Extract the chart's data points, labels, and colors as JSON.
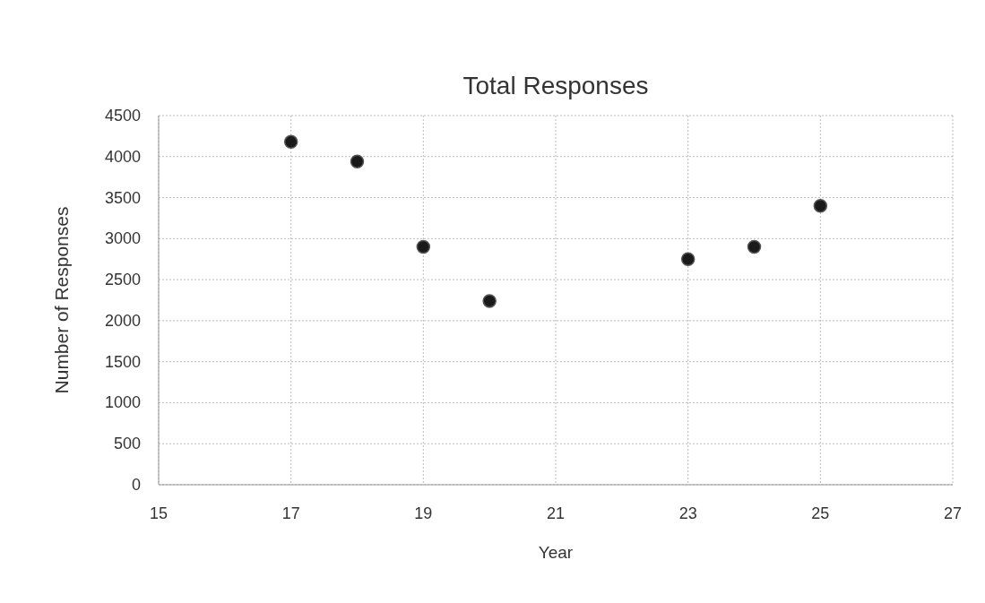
{
  "chart_data": {
    "type": "scatter",
    "title": "Total Responses",
    "xlabel": "Year",
    "ylabel": "Number of Responses",
    "x": [
      17,
      18,
      19,
      20,
      23,
      24,
      25
    ],
    "values": [
      4180,
      3940,
      2900,
      2240,
      2750,
      2900,
      3400
    ],
    "color": "#1a1a1a",
    "marker": "circle",
    "grid": true,
    "xlim": [
      15,
      27
    ],
    "xticks": [
      15,
      17,
      19,
      21,
      23,
      25,
      27
    ],
    "ylim": [
      0,
      4500
    ],
    "yticks": [
      0,
      500,
      1000,
      1500,
      2000,
      2500,
      3000,
      3500,
      4000,
      4500
    ]
  }
}
